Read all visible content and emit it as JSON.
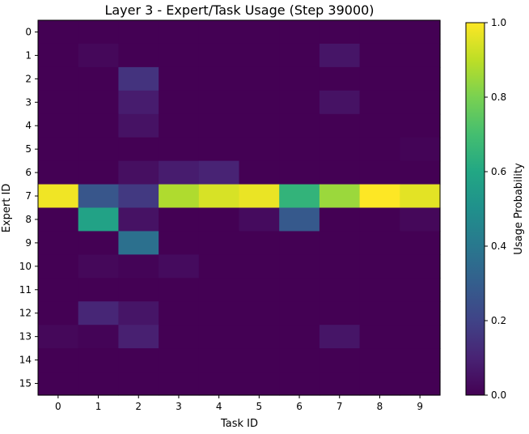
{
  "chart_data": {
    "type": "heatmap",
    "title": "Layer 3 - Expert/Task Usage (Step 39000)",
    "xlabel": "Task ID",
    "ylabel": "Expert ID",
    "x_categories": [
      "0",
      "1",
      "2",
      "3",
      "4",
      "5",
      "6",
      "7",
      "8",
      "9"
    ],
    "y_categories": [
      "0",
      "1",
      "2",
      "3",
      "4",
      "5",
      "6",
      "7",
      "8",
      "9",
      "10",
      "11",
      "12",
      "13",
      "14",
      "15"
    ],
    "colormap": "viridis",
    "colorbar": {
      "label": "Usage Probability",
      "range": [
        0.0,
        1.0
      ],
      "ticks": [
        "0.0",
        "0.2",
        "0.4",
        "0.6",
        "0.8",
        "1.0"
      ]
    },
    "values": [
      [
        0.0,
        0.0,
        0.0,
        0.0,
        0.0,
        0.0,
        0.0,
        0.0,
        0.0,
        0.0
      ],
      [
        0.0,
        0.02,
        0.0,
        0.0,
        0.0,
        0.0,
        0.0,
        0.06,
        0.0,
        0.0
      ],
      [
        0.0,
        0.0,
        0.15,
        0.0,
        0.0,
        0.0,
        0.0,
        0.0,
        0.0,
        0.0
      ],
      [
        0.0,
        0.0,
        0.08,
        0.0,
        0.0,
        0.0,
        0.0,
        0.05,
        0.0,
        0.0
      ],
      [
        0.0,
        0.0,
        0.05,
        0.0,
        0.0,
        0.0,
        0.0,
        0.0,
        0.0,
        0.0
      ],
      [
        0.0,
        0.0,
        0.0,
        0.0,
        0.0,
        0.0,
        0.0,
        0.0,
        0.0,
        0.01
      ],
      [
        0.0,
        0.0,
        0.04,
        0.08,
        0.1,
        0.0,
        0.0,
        0.0,
        0.0,
        0.0
      ],
      [
        0.98,
        0.27,
        0.17,
        0.88,
        0.94,
        0.97,
        0.65,
        0.85,
        1.0,
        0.96
      ],
      [
        0.0,
        0.58,
        0.05,
        0.0,
        0.0,
        0.03,
        0.28,
        0.0,
        0.0,
        0.02
      ],
      [
        0.0,
        0.0,
        0.37,
        0.0,
        0.0,
        0.0,
        0.0,
        0.0,
        0.0,
        0.0
      ],
      [
        0.0,
        0.02,
        0.01,
        0.03,
        0.0,
        0.0,
        0.0,
        0.0,
        0.0,
        0.0
      ],
      [
        0.0,
        0.0,
        0.0,
        0.0,
        0.0,
        0.0,
        0.0,
        0.0,
        0.0,
        0.0
      ],
      [
        0.0,
        0.11,
        0.06,
        0.0,
        0.0,
        0.0,
        0.0,
        0.0,
        0.0,
        0.0
      ],
      [
        0.02,
        0.01,
        0.09,
        0.0,
        0.0,
        0.0,
        0.0,
        0.06,
        0.0,
        0.0
      ],
      [
        0.0,
        0.0,
        0.0,
        0.0,
        0.0,
        0.0,
        0.0,
        0.0,
        0.0,
        0.0
      ],
      [
        0.0,
        0.0,
        0.0,
        0.0,
        0.0,
        0.0,
        0.0,
        0.0,
        0.0,
        0.0
      ]
    ]
  }
}
